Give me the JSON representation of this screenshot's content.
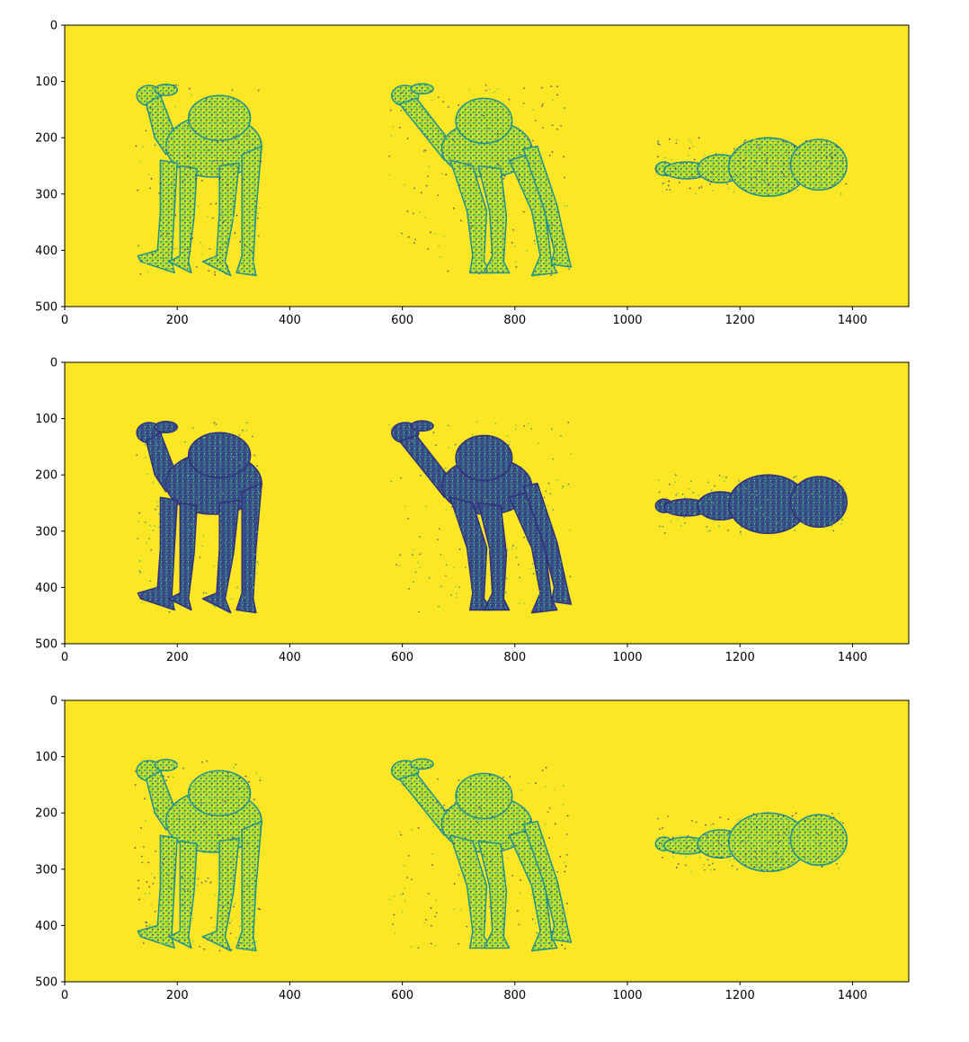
{
  "colors": {
    "background": "#fde725",
    "dark": "#3b528b",
    "darker": "#31317a",
    "mid": "#21918c",
    "light": "#5ec962",
    "bright": "#b5de2b",
    "axis": "#000000"
  },
  "chart_data": [
    {
      "type": "heatmap",
      "description_of_marks": "point-cloud depth rendering of a camel in three views (side, side, top) over a bright background",
      "xlim": [
        0,
        1500
      ],
      "ylim": [
        500,
        0
      ],
      "x_ticks": [
        0,
        200,
        400,
        600,
        800,
        1000,
        1200,
        1400
      ],
      "y_ticks": [
        0,
        100,
        200,
        300,
        400,
        500
      ],
      "x_tick_labels": [
        "0",
        "200",
        "400",
        "600",
        "800",
        "1000",
        "1200",
        "1400"
      ],
      "y_tick_labels": [
        "0",
        "100",
        "200",
        "300",
        "400",
        "500"
      ],
      "density": "sparse",
      "views": [
        {
          "view": "side",
          "x_range": [
            125,
            350
          ],
          "y_range": [
            105,
            445
          ]
        },
        {
          "view": "side",
          "x_range": [
            575,
            900
          ],
          "y_range": [
            105,
            445
          ]
        },
        {
          "view": "top",
          "x_range": [
            1050,
            1390
          ],
          "y_range": [
            200,
            305
          ]
        }
      ]
    },
    {
      "type": "heatmap",
      "xlim": [
        0,
        1500
      ],
      "ylim": [
        500,
        0
      ],
      "x_ticks": [
        0,
        200,
        400,
        600,
        800,
        1000,
        1200,
        1400
      ],
      "y_ticks": [
        0,
        100,
        200,
        300,
        400,
        500
      ],
      "x_tick_labels": [
        "0",
        "200",
        "400",
        "600",
        "800",
        "1000",
        "1200",
        "1400"
      ],
      "y_tick_labels": [
        "0",
        "100",
        "200",
        "300",
        "400",
        "500"
      ],
      "density": "dense",
      "views": [
        {
          "view": "side",
          "x_range": [
            125,
            350
          ],
          "y_range": [
            105,
            445
          ]
        },
        {
          "view": "side",
          "x_range": [
            575,
            900
          ],
          "y_range": [
            105,
            445
          ]
        },
        {
          "view": "top",
          "x_range": [
            1050,
            1390
          ],
          "y_range": [
            200,
            305
          ]
        }
      ]
    },
    {
      "type": "heatmap",
      "xlim": [
        0,
        1500
      ],
      "ylim": [
        500,
        0
      ],
      "x_ticks": [
        0,
        200,
        400,
        600,
        800,
        1000,
        1200,
        1400
      ],
      "y_ticks": [
        0,
        100,
        200,
        300,
        400,
        500
      ],
      "x_tick_labels": [
        "0",
        "200",
        "400",
        "600",
        "800",
        "1000",
        "1200",
        "1400"
      ],
      "y_tick_labels": [
        "0",
        "100",
        "200",
        "300",
        "400",
        "500"
      ],
      "density": "sparse",
      "views": [
        {
          "view": "side",
          "x_range": [
            125,
            350
          ],
          "y_range": [
            105,
            445
          ]
        },
        {
          "view": "side",
          "x_range": [
            575,
            900
          ],
          "y_range": [
            105,
            445
          ]
        },
        {
          "view": "top",
          "x_range": [
            1050,
            1390
          ],
          "y_range": [
            200,
            305
          ]
        }
      ]
    }
  ]
}
